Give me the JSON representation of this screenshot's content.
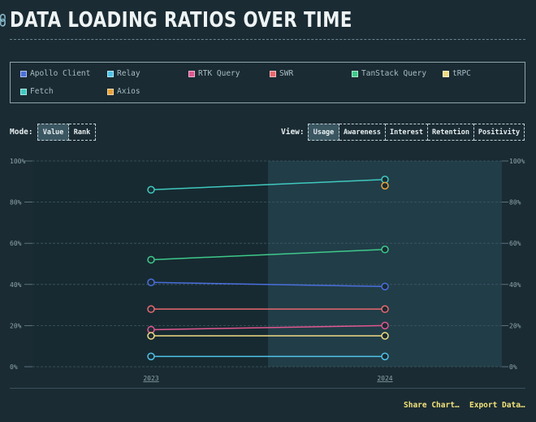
{
  "header": {
    "title": "DATA LOADING RATIOS OVER TIME"
  },
  "legend": [
    {
      "label": "Apollo Client",
      "color": "#4a6fdc"
    },
    {
      "label": "Relay",
      "color": "#4fc3e8"
    },
    {
      "label": "RTK Query",
      "color": "#e0578f"
    },
    {
      "label": "SWR",
      "color": "#e8696f"
    },
    {
      "label": "TanStack Query",
      "color": "#3ec98a"
    },
    {
      "label": "tRPC",
      "color": "#f0dc82"
    },
    {
      "label": "Fetch",
      "color": "#3fc9bf"
    },
    {
      "label": "Axios",
      "color": "#e8a33c"
    }
  ],
  "controls": {
    "mode_label": "Mode:",
    "mode_options": [
      "Value",
      "Rank"
    ],
    "mode_selected": "Value",
    "view_label": "View:",
    "view_options": [
      "Usage",
      "Awareness",
      "Interest",
      "Retention",
      "Positivity"
    ],
    "view_selected": "Usage"
  },
  "chart_data": {
    "type": "line",
    "x": [
      "2023",
      "2024"
    ],
    "ylim": [
      0,
      100
    ],
    "yticks": [
      "0%",
      "20%",
      "40%",
      "60%",
      "80%",
      "100%"
    ],
    "grid": true,
    "series": [
      {
        "name": "Apollo Client",
        "color": "#4a6fdc",
        "values": [
          41,
          39
        ]
      },
      {
        "name": "Relay",
        "color": "#4fc3e8",
        "values": [
          5,
          5
        ]
      },
      {
        "name": "RTK Query",
        "color": "#e0578f",
        "values": [
          18,
          20
        ]
      },
      {
        "name": "SWR",
        "color": "#e8696f",
        "values": [
          28,
          28
        ]
      },
      {
        "name": "TanStack Query",
        "color": "#3ec98a",
        "values": [
          52,
          57
        ]
      },
      {
        "name": "tRPC",
        "color": "#f0dc82",
        "values": [
          15,
          15
        ]
      },
      {
        "name": "Fetch",
        "color": "#3fc9bf",
        "values": [
          86,
          91
        ]
      },
      {
        "name": "Axios",
        "color": "#e8a33c",
        "values": [
          null,
          88
        ]
      }
    ]
  },
  "footer": {
    "share_label": "Share Chart…",
    "export_label": "Export Data…"
  }
}
